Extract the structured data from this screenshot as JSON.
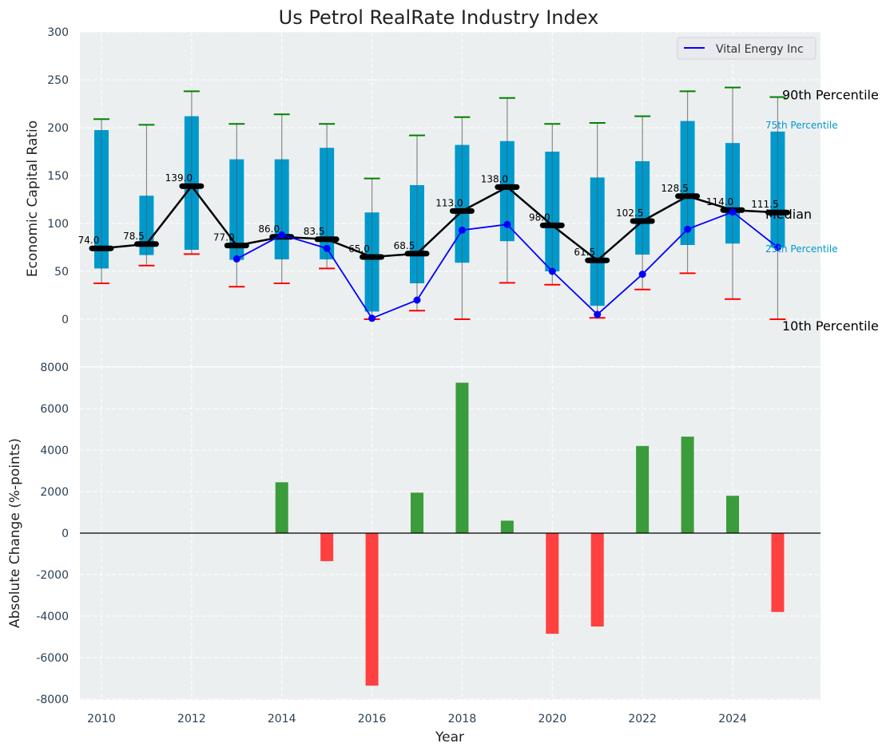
{
  "chart_data": [
    {
      "type": "box-line",
      "title": "Us Petrol RealRate Industry Index",
      "ylabel": "Economic Capital Ratio",
      "ylim": [
        0,
        300
      ],
      "yticks": [
        0,
        50,
        100,
        150,
        200,
        250,
        300
      ],
      "grid": true,
      "legend": {
        "placement": "top-right",
        "entries": [
          "Vital Energy Inc"
        ]
      },
      "years": [
        2010,
        2011,
        2012,
        2013,
        2014,
        2015,
        2016,
        2017,
        2018,
        2019,
        2020,
        2021,
        2022,
        2023,
        2024,
        2025
      ],
      "p90": [
        209,
        203,
        238,
        204,
        214,
        204,
        147,
        192,
        211,
        231,
        204,
        205,
        212,
        238,
        242,
        232
      ],
      "p75": [
        197.5,
        129,
        212,
        167,
        167,
        179,
        111.5,
        140,
        182,
        186,
        175,
        148,
        165,
        207,
        184,
        196
      ],
      "median": [
        74.0,
        78.5,
        139.0,
        77.0,
        86.0,
        83.5,
        65.0,
        68.5,
        113.0,
        138.0,
        98.0,
        61.5,
        102.5,
        128.5,
        114.0,
        111.5
      ],
      "median_labels": [
        "74.0",
        "78.5",
        "139.0",
        "77.0",
        "86.0",
        "83.5",
        "65.0",
        "68.5",
        "113.0",
        "138.0",
        "98.0",
        "61.5",
        "102.5",
        "128.5",
        "114.0",
        "111.5"
      ],
      "p25": [
        53,
        67,
        72.5,
        62,
        62.5,
        62.5,
        8,
        37.5,
        59,
        81.5,
        50,
        14,
        67.5,
        77.5,
        79,
        75
      ],
      "p10": [
        37.5,
        56,
        68,
        34,
        37.5,
        53,
        0,
        9,
        0,
        38,
        36,
        1.5,
        31,
        48,
        21,
        0
      ],
      "company": {
        "name": "Vital Energy Inc",
        "values": [
          null,
          null,
          null,
          63,
          88,
          74,
          1,
          20,
          93,
          99,
          50,
          5,
          47,
          94,
          112,
          75
        ]
      },
      "annotations": {
        "p90": "90th Percentile",
        "p75": "75th Percentile",
        "median": "Median",
        "p25": "25th Percentile",
        "p10": "10th Percentile"
      },
      "colors": {
        "box": "#0099cc",
        "median": "#000000",
        "company": "#0000ff",
        "p90": "#008000",
        "p10": "#ff0000",
        "bg": "#eceff0"
      }
    },
    {
      "type": "bar",
      "xlabel": "Year",
      "ylabel": "Absolute Change (%-points)",
      "ylim": [
        -8000,
        8000
      ],
      "yticks": [
        -8000,
        -6000,
        -4000,
        -2000,
        0,
        2000,
        4000,
        6000,
        8000
      ],
      "xticks": [
        2010,
        2012,
        2014,
        2016,
        2018,
        2020,
        2022,
        2024
      ],
      "grid": true,
      "years": [
        2010,
        2011,
        2012,
        2013,
        2014,
        2015,
        2016,
        2017,
        2018,
        2019,
        2020,
        2021,
        2022,
        2023,
        2024,
        2025
      ],
      "values": [
        0,
        0,
        0,
        0,
        2450,
        -1350,
        -7350,
        1950,
        7250,
        600,
        -4850,
        -4500,
        4200,
        4650,
        1800,
        -3800
      ],
      "colors": {
        "positive": "#3a9c3a",
        "negative": "#ff4040"
      }
    }
  ]
}
